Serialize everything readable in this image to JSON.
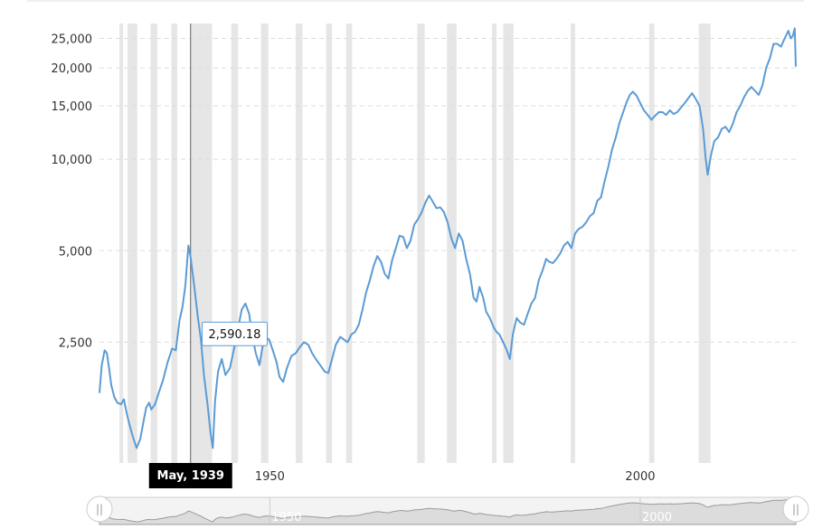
{
  "chart_data": {
    "type": "line",
    "y_scale": "log",
    "x_axis": {
      "min": 1927,
      "max": 2021,
      "ticks": [
        1950,
        2000
      ]
    },
    "y_axis": {
      "min": 1000,
      "max": 28000,
      "ticks": [
        2500,
        5000,
        10000,
        15000,
        20000,
        25000
      ]
    },
    "grid": "horizontal dashed",
    "colors": {
      "line": "#5b9bd5",
      "recession_band": "#e6e6e6",
      "navigator_fill": "#dcdcdc"
    },
    "recessions": [
      [
        1929.7,
        1930.2
      ],
      [
        1930.8,
        1932.1
      ],
      [
        1933.9,
        1934.8
      ],
      [
        1936.7,
        1937.5
      ],
      [
        1939.2,
        1942.2
      ],
      [
        1944.8,
        1945.7
      ],
      [
        1948.8,
        1949.8
      ],
      [
        1953.5,
        1954.4
      ],
      [
        1957.6,
        1958.4
      ],
      [
        1960.3,
        1961.1
      ],
      [
        1969.9,
        1970.9
      ],
      [
        1973.9,
        1975.2
      ],
      [
        1980.0,
        1980.6
      ],
      [
        1981.5,
        1982.9
      ],
      [
        1990.6,
        1991.2
      ],
      [
        2001.2,
        2001.9
      ],
      [
        2007.9,
        2009.5
      ]
    ],
    "series": [
      {
        "values": [
          [
            1927.0,
            1700
          ],
          [
            1927.3,
            2100
          ],
          [
            1927.7,
            2350
          ],
          [
            1928.0,
            2300
          ],
          [
            1928.3,
            2050
          ],
          [
            1928.6,
            1800
          ],
          [
            1929.0,
            1650
          ],
          [
            1929.4,
            1580
          ],
          [
            1929.9,
            1560
          ],
          [
            1930.3,
            1620
          ],
          [
            1930.7,
            1450
          ],
          [
            1931.0,
            1350
          ],
          [
            1931.5,
            1220
          ],
          [
            1932.0,
            1120
          ],
          [
            1932.5,
            1200
          ],
          [
            1932.9,
            1350
          ],
          [
            1933.3,
            1520
          ],
          [
            1933.7,
            1580
          ],
          [
            1934.0,
            1500
          ],
          [
            1934.5,
            1560
          ],
          [
            1935.0,
            1700
          ],
          [
            1935.6,
            1880
          ],
          [
            1936.2,
            2150
          ],
          [
            1936.8,
            2380
          ],
          [
            1937.3,
            2350
          ],
          [
            1937.8,
            2950
          ],
          [
            1938.2,
            3250
          ],
          [
            1938.6,
            3850
          ],
          [
            1939.0,
            5200
          ],
          [
            1939.3,
            4750
          ],
          [
            1939.8,
            3800
          ],
          [
            1940.3,
            3000
          ],
          [
            1940.7,
            2550
          ],
          [
            1941.1,
            1950
          ],
          [
            1941.6,
            1550
          ],
          [
            1942.0,
            1250
          ],
          [
            1942.3,
            1120
          ],
          [
            1942.6,
            1600
          ],
          [
            1943.0,
            2000
          ],
          [
            1943.5,
            2200
          ],
          [
            1944.0,
            1950
          ],
          [
            1944.6,
            2050
          ],
          [
            1945.2,
            2400
          ],
          [
            1945.8,
            2850
          ],
          [
            1946.2,
            3200
          ],
          [
            1946.7,
            3350
          ],
          [
            1947.2,
            3100
          ],
          [
            1947.6,
            2650
          ],
          [
            1948.1,
            2300
          ],
          [
            1948.6,
            2100
          ],
          [
            1949.0,
            2400
          ],
          [
            1949.4,
            2590
          ],
          [
            1949.9,
            2550
          ],
          [
            1950.4,
            2350
          ],
          [
            1950.9,
            2150
          ],
          [
            1951.3,
            1920
          ],
          [
            1951.8,
            1850
          ],
          [
            1952.3,
            2050
          ],
          [
            1952.9,
            2250
          ],
          [
            1953.5,
            2300
          ],
          [
            1954.0,
            2400
          ],
          [
            1954.6,
            2500
          ],
          [
            1955.2,
            2450
          ],
          [
            1955.7,
            2300
          ],
          [
            1956.2,
            2200
          ],
          [
            1956.8,
            2100
          ],
          [
            1957.4,
            2000
          ],
          [
            1957.9,
            1980
          ],
          [
            1958.4,
            2200
          ],
          [
            1958.9,
            2450
          ],
          [
            1959.5,
            2600
          ],
          [
            1960.0,
            2550
          ],
          [
            1960.5,
            2500
          ],
          [
            1961.0,
            2650
          ],
          [
            1961.5,
            2700
          ],
          [
            1962.0,
            2850
          ],
          [
            1962.5,
            3200
          ],
          [
            1963.0,
            3650
          ],
          [
            1963.5,
            4000
          ],
          [
            1964.0,
            4450
          ],
          [
            1964.5,
            4800
          ],
          [
            1965.0,
            4600
          ],
          [
            1965.5,
            4200
          ],
          [
            1966.0,
            4050
          ],
          [
            1966.5,
            4650
          ],
          [
            1967.0,
            5100
          ],
          [
            1967.5,
            5600
          ],
          [
            1968.0,
            5550
          ],
          [
            1968.5,
            5100
          ],
          [
            1969.0,
            5400
          ],
          [
            1969.5,
            6100
          ],
          [
            1970.0,
            6350
          ],
          [
            1970.5,
            6700
          ],
          [
            1971.0,
            7200
          ],
          [
            1971.5,
            7600
          ],
          [
            1972.0,
            7250
          ],
          [
            1972.5,
            6900
          ],
          [
            1973.0,
            6950
          ],
          [
            1973.5,
            6700
          ],
          [
            1974.0,
            6200
          ],
          [
            1974.5,
            5500
          ],
          [
            1975.0,
            5100
          ],
          [
            1975.5,
            5700
          ],
          [
            1976.0,
            5400
          ],
          [
            1976.5,
            4700
          ],
          [
            1977.0,
            4200
          ],
          [
            1977.5,
            3500
          ],
          [
            1977.9,
            3400
          ],
          [
            1978.3,
            3800
          ],
          [
            1978.8,
            3500
          ],
          [
            1979.2,
            3150
          ],
          [
            1979.7,
            3000
          ],
          [
            1980.2,
            2800
          ],
          [
            1980.6,
            2700
          ],
          [
            1981.0,
            2650
          ],
          [
            1981.5,
            2500
          ],
          [
            1982.0,
            2350
          ],
          [
            1982.4,
            2200
          ],
          [
            1982.8,
            2650
          ],
          [
            1983.3,
            3000
          ],
          [
            1983.8,
            2900
          ],
          [
            1984.3,
            2850
          ],
          [
            1984.8,
            3100
          ],
          [
            1985.3,
            3350
          ],
          [
            1985.8,
            3500
          ],
          [
            1986.3,
            4000
          ],
          [
            1986.8,
            4300
          ],
          [
            1987.3,
            4700
          ],
          [
            1987.7,
            4600
          ],
          [
            1988.2,
            4550
          ],
          [
            1988.7,
            4700
          ],
          [
            1989.2,
            4900
          ],
          [
            1989.7,
            5200
          ],
          [
            1990.2,
            5350
          ],
          [
            1990.7,
            5100
          ],
          [
            1991.2,
            5700
          ],
          [
            1991.7,
            5900
          ],
          [
            1992.2,
            6000
          ],
          [
            1992.7,
            6200
          ],
          [
            1993.2,
            6500
          ],
          [
            1993.7,
            6650
          ],
          [
            1994.2,
            7300
          ],
          [
            1994.7,
            7500
          ],
          [
            1995.2,
            8500
          ],
          [
            1995.7,
            9500
          ],
          [
            1996.2,
            10800
          ],
          [
            1996.7,
            11800
          ],
          [
            1997.2,
            13200
          ],
          [
            1997.7,
            14300
          ],
          [
            1998.2,
            15500
          ],
          [
            1998.6,
            16300
          ],
          [
            1999.0,
            16700
          ],
          [
            1999.5,
            16200
          ],
          [
            2000.0,
            15300
          ],
          [
            2000.5,
            14500
          ],
          [
            2001.0,
            14000
          ],
          [
            2001.5,
            13500
          ],
          [
            2002.0,
            13900
          ],
          [
            2002.5,
            14300
          ],
          [
            2003.0,
            14300
          ],
          [
            2003.5,
            14000
          ],
          [
            2004.0,
            14500
          ],
          [
            2004.5,
            14100
          ],
          [
            2005.0,
            14300
          ],
          [
            2005.5,
            14800
          ],
          [
            2006.0,
            15300
          ],
          [
            2006.5,
            15900
          ],
          [
            2007.0,
            16500
          ],
          [
            2007.5,
            15800
          ],
          [
            2008.0,
            15000
          ],
          [
            2008.5,
            12500
          ],
          [
            2008.8,
            10200
          ],
          [
            2009.1,
            8900
          ],
          [
            2009.5,
            10200
          ],
          [
            2010.0,
            11500
          ],
          [
            2010.5,
            11800
          ],
          [
            2011.0,
            12600
          ],
          [
            2011.5,
            12800
          ],
          [
            2012.0,
            12300
          ],
          [
            2012.5,
            13100
          ],
          [
            2013.0,
            14300
          ],
          [
            2013.5,
            15000
          ],
          [
            2014.0,
            16000
          ],
          [
            2014.5,
            16800
          ],
          [
            2015.0,
            17300
          ],
          [
            2015.5,
            16800
          ],
          [
            2016.0,
            16300
          ],
          [
            2016.5,
            17500
          ],
          [
            2017.0,
            20000
          ],
          [
            2017.5,
            21500
          ],
          [
            2018.0,
            24000
          ],
          [
            2018.5,
            24000
          ],
          [
            2019.0,
            23500
          ],
          [
            2019.5,
            25000
          ],
          [
            2020.0,
            26500
          ],
          [
            2020.3,
            25000
          ],
          [
            2020.6,
            25500
          ],
          [
            2020.85,
            27000
          ],
          [
            2021.0,
            20200
          ]
        ]
      }
    ],
    "navigator": {
      "tick_labels": [
        "1950",
        "2000"
      ],
      "handle_left_glyph": "||",
      "handle_right_glyph": "||"
    },
    "tooltip": {
      "value": "2,590.18",
      "x": 1949.4,
      "y": 2590
    },
    "crosshair": {
      "x": 1939.3,
      "label": "May, 1939"
    }
  }
}
